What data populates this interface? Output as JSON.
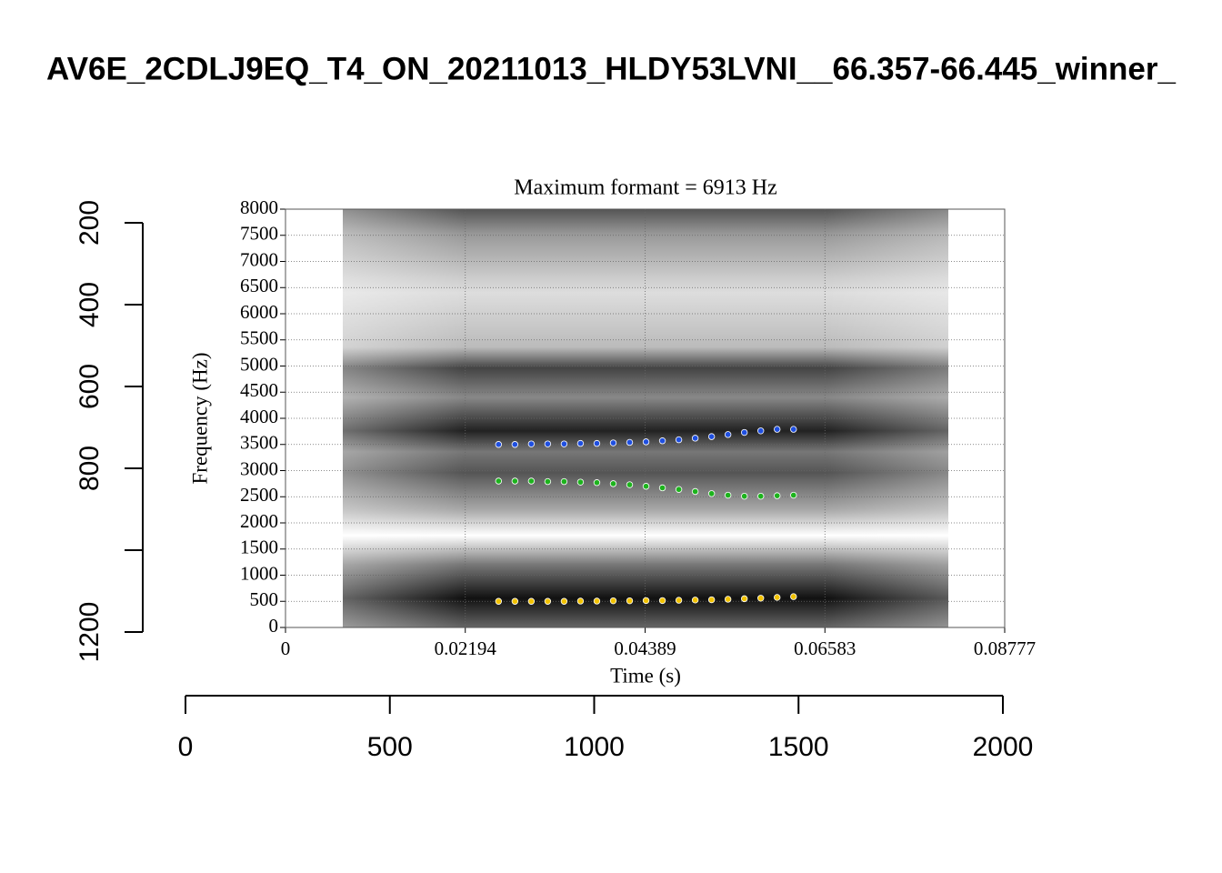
{
  "chart_data": [
    {
      "type": "axes",
      "title": "AV6E_2CDLJ9EQ_T4_ON_20211013_HLDY53LVNI__66.357-66.445_winner_",
      "xlim": [
        0,
        2000
      ],
      "xticks": [
        0,
        500,
        1000,
        1500,
        2000
      ],
      "ylim": [
        1200,
        200
      ],
      "yticks": [
        200,
        400,
        600,
        800,
        {
          "value": 1000,
          "label": null
        },
        1200
      ]
    },
    {
      "type": "scatter",
      "title": "Maximum formant = 6913 Hz",
      "x_label": "Time (s)",
      "y_label": "Frequency (Hz)",
      "xlim": [
        0,
        0.08777
      ],
      "xticks": [
        0,
        0.02194,
        0.04389,
        0.06583,
        0.08777
      ],
      "ylim": [
        0,
        8000
      ],
      "yticks": [
        0,
        500,
        1000,
        1500,
        2000,
        2500,
        3000,
        3500,
        4000,
        4500,
        5000,
        5500,
        6000,
        6500,
        7000,
        7500,
        8000
      ],
      "grid": true,
      "x": [
        0.026,
        0.028,
        0.03,
        0.032,
        0.034,
        0.036,
        0.038,
        0.04,
        0.042,
        0.044,
        0.046,
        0.048,
        0.05,
        0.052,
        0.054,
        0.056,
        0.058,
        0.06,
        0.062
      ],
      "series": [
        {
          "color": "#f2c200",
          "values": [
            500,
            500,
            500,
            500,
            500,
            505,
            505,
            510,
            510,
            515,
            515,
            520,
            525,
            530,
            540,
            550,
            560,
            575,
            590
          ]
        },
        {
          "color": "#1db31d",
          "values": [
            2800,
            2800,
            2800,
            2790,
            2790,
            2780,
            2770,
            2750,
            2730,
            2700,
            2670,
            2640,
            2600,
            2560,
            2530,
            2510,
            2510,
            2520,
            2530
          ]
        },
        {
          "color": "#1f4fe0",
          "values": [
            3500,
            3500,
            3510,
            3510,
            3510,
            3520,
            3520,
            3530,
            3540,
            3550,
            3570,
            3590,
            3620,
            3650,
            3690,
            3730,
            3760,
            3790,
            3790
          ]
        }
      ]
    }
  ]
}
